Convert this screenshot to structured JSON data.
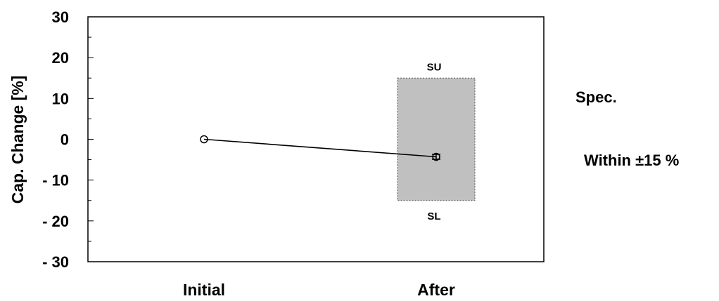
{
  "chart_data": {
    "type": "line",
    "title": "",
    "xlabel": "",
    "ylabel": "Cap. Change [%]",
    "ylim": [
      -30,
      30
    ],
    "y_ticks": [
      30,
      20,
      10,
      0,
      -10,
      -20,
      -30
    ],
    "y_tick_labels": [
      "30",
      "20",
      "10",
      "0",
      "- 10",
      "- 20",
      "- 30"
    ],
    "categories": [
      "Initial",
      "After"
    ],
    "series": [
      {
        "values": [
          0,
          -4.3
        ],
        "error_bar": {
          "After": [
            -4.9,
            -3.7
          ]
        }
      }
    ],
    "spec_band": {
      "upper": 15,
      "lower": -15,
      "upper_label": "SU",
      "lower_label": "SL",
      "category": "After",
      "color": "#c0c0c0"
    },
    "grid": false
  },
  "spec": {
    "title": "Spec.",
    "text": "Within ±15 %"
  }
}
